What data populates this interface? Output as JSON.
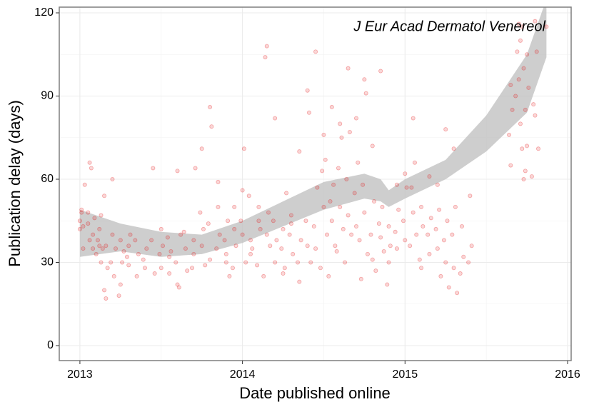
{
  "chart_data": {
    "type": "scatter",
    "annotation": "J Eur Acad Dermatol Venereol",
    "x_label": "Date published online",
    "y_label": "Publication delay (days)",
    "xlim": [
      2012.873,
      2016.022
    ],
    "ylim": [
      -5.41,
      122.06
    ],
    "xticks": [
      2013,
      2014,
      2015,
      2016
    ],
    "yticks": [
      0,
      30,
      60,
      90,
      120
    ],
    "grid": true,
    "series": [
      {
        "color": "#e41a1c",
        "x": [
          2013.0,
          2013.01,
          2013.0,
          2013.02,
          2013.01,
          2013.02,
          2013.03,
          2013.05,
          2013.06,
          2013.05,
          2013.07,
          2013.06,
          2013.08,
          2013.09,
          2013.08,
          2013.1,
          2013.12,
          2013.13,
          2013.12,
          2013.11,
          2013.14,
          2013.13,
          2013.15,
          2013.16,
          2013.17,
          2013.15,
          2013.16,
          2013.2,
          2013.19,
          2013.21,
          2013.2,
          2013.22,
          2013.25,
          2013.24,
          2013.26,
          2013.25,
          2013.27,
          2013.3,
          2013.29,
          2013.31,
          2013.3,
          2013.35,
          2013.36,
          2013.34,
          2013.4,
          2013.41,
          2013.39,
          2013.45,
          2013.46,
          2013.44,
          2013.5,
          2013.51,
          2013.49,
          2013.5,
          2013.55,
          2013.56,
          2013.54,
          2013.55,
          2013.6,
          2013.61,
          2013.6,
          2013.59,
          2013.62,
          2013.65,
          2013.66,
          2013.64,
          2013.7,
          2013.71,
          2013.69,
          2013.7,
          2013.75,
          2013.76,
          2013.74,
          2013.75,
          2013.77,
          2013.8,
          2013.81,
          2013.79,
          2013.8,
          2013.85,
          2013.86,
          2013.84,
          2013.85,
          2013.9,
          2013.91,
          2013.89,
          2013.9,
          2013.92,
          2013.95,
          2013.96,
          2013.94,
          2013.95,
          2014.0,
          2014.01,
          2013.99,
          2014.0,
          2014.02,
          2014.05,
          2014.06,
          2014.04,
          2014.05,
          2014.1,
          2014.11,
          2014.09,
          2014.1,
          2014.15,
          2014.14,
          2014.16,
          2014.15,
          2014.17,
          2014.13,
          2014.2,
          2014.19,
          2014.21,
          2014.2,
          2014.25,
          2014.24,
          2014.26,
          2014.25,
          2014.27,
          2014.3,
          2014.29,
          2014.31,
          2014.3,
          2014.35,
          2014.36,
          2014.34,
          2014.35,
          2014.4,
          2014.41,
          2014.39,
          2014.4,
          2014.42,
          2014.45,
          2014.46,
          2014.44,
          2014.45,
          2014.5,
          2014.51,
          2014.49,
          2014.5,
          2014.52,
          2014.48,
          2014.55,
          2014.56,
          2014.54,
          2014.55,
          2014.57,
          2014.53,
          2014.6,
          2014.61,
          2014.59,
          2014.6,
          2014.62,
          2014.58,
          2014.65,
          2014.66,
          2014.64,
          2014.65,
          2014.67,
          2014.63,
          2014.7,
          2014.71,
          2014.69,
          2014.7,
          2014.72,
          2014.75,
          2014.76,
          2014.74,
          2014.75,
          2014.77,
          2014.73,
          2014.8,
          2014.81,
          2014.79,
          2014.8,
          2014.82,
          2014.85,
          2014.86,
          2014.84,
          2014.85,
          2014.87,
          2014.9,
          2014.91,
          2014.89,
          2014.9,
          2014.95,
          2014.96,
          2014.94,
          2014.95,
          2015.0,
          2015.01,
          2014.99,
          2015.0,
          2015.05,
          2015.06,
          2015.04,
          2015.05,
          2015.07,
          2015.03,
          2015.1,
          2015.11,
          2015.09,
          2015.1,
          2015.15,
          2015.16,
          2015.14,
          2015.15,
          2015.2,
          2015.21,
          2015.19,
          2015.2,
          2015.22,
          2015.25,
          2015.26,
          2015.24,
          2015.25,
          2015.27,
          2015.3,
          2015.31,
          2015.29,
          2015.3,
          2015.32,
          2015.35,
          2015.36,
          2015.34,
          2015.4,
          2015.41,
          2015.39,
          2015.65,
          2015.66,
          2015.64,
          2015.65,
          2015.7,
          2015.71,
          2015.69,
          2015.7,
          2015.68,
          2015.72,
          2015.73,
          2015.71,
          2015.72,
          2015.74,
          2015.73,
          2015.75,
          2015.76,
          2015.74,
          2015.75,
          2015.8,
          2015.81,
          2015.79,
          2015.8,
          2015.82,
          2015.78,
          2015.87
        ],
        "values": [
          42,
          49,
          45,
          35,
          48,
          43,
          58,
          48,
          38,
          44,
          64,
          66,
          40,
          46,
          35,
          33,
          36,
          47,
          42,
          38,
          35,
          30,
          20,
          17,
          28,
          54,
          36,
          60,
          30,
          25,
          40,
          35,
          22,
          18,
          30,
          38,
          34,
          29,
          32,
          40,
          36,
          25,
          33,
          38,
          28,
          35,
          31,
          64,
          26,
          38,
          28,
          36,
          33,
          42,
          26,
          34,
          39,
          32,
          22,
          21,
          63,
          30,
          40,
          35,
          27,
          41,
          38,
          64,
          28,
          33,
          71,
          42,
          48,
          36,
          29,
          86,
          79,
          44,
          31,
          50,
          40,
          35,
          59,
          30,
          45,
          38,
          33,
          25,
          42,
          36,
          28,
          50,
          56,
          71,
          45,
          40,
          30,
          38,
          35,
          54,
          33,
          45,
          42,
          29,
          50,
          108,
          104,
          48,
          40,
          36,
          25,
          82,
          45,
          38,
          30,
          42,
          35,
          28,
          26,
          55,
          44,
          40,
          33,
          47,
          70,
          38,
          30,
          23,
          92,
          84,
          45,
          36,
          30,
          106,
          57,
          43,
          35,
          76,
          67,
          63,
          50,
          40,
          28,
          86,
          58,
          52,
          45,
          36,
          25,
          80,
          75,
          64,
          50,
          42,
          34,
          100,
          77,
          60,
          47,
          40,
          30,
          82,
          66,
          55,
          43,
          38,
          96,
          91,
          58,
          48,
          33,
          24,
          72,
          52,
          40,
          31,
          27,
          99,
          50,
          44,
          39,
          34,
          43,
          36,
          22,
          30,
          58,
          49,
          41,
          35,
          62,
          57,
          45,
          38,
          82,
          66,
          57,
          48,
          40,
          36,
          50,
          43,
          31,
          28,
          61,
          46,
          40,
          33,
          58,
          49,
          42,
          35,
          25,
          78,
          45,
          38,
          30,
          21,
          71,
          50,
          40,
          28,
          19,
          43,
          32,
          26,
          54,
          36,
          30,
          94,
          85,
          76,
          65,
          116,
          110,
          106,
          96,
          90,
          115,
          100,
          80,
          71,
          63,
          60,
          105,
          93,
          85,
          72,
          117,
          106,
          87,
          83,
          71,
          61,
          115
        ]
      }
    ],
    "band": {
      "color": "#bebebe",
      "x": [
        2013.0,
        2013.25,
        2013.5,
        2013.75,
        2014.0,
        2014.25,
        2014.5,
        2014.75,
        2014.85,
        2014.9,
        2015.0,
        2015.25,
        2015.5,
        2015.75,
        2015.87
      ],
      "lower": [
        32,
        34,
        32,
        33,
        37,
        43,
        49,
        53,
        52,
        50,
        53,
        60,
        70,
        84,
        104
      ],
      "upper": [
        49,
        44,
        41,
        40,
        45,
        52,
        59,
        62,
        60,
        56,
        60,
        67,
        83,
        105,
        125
      ]
    }
  }
}
